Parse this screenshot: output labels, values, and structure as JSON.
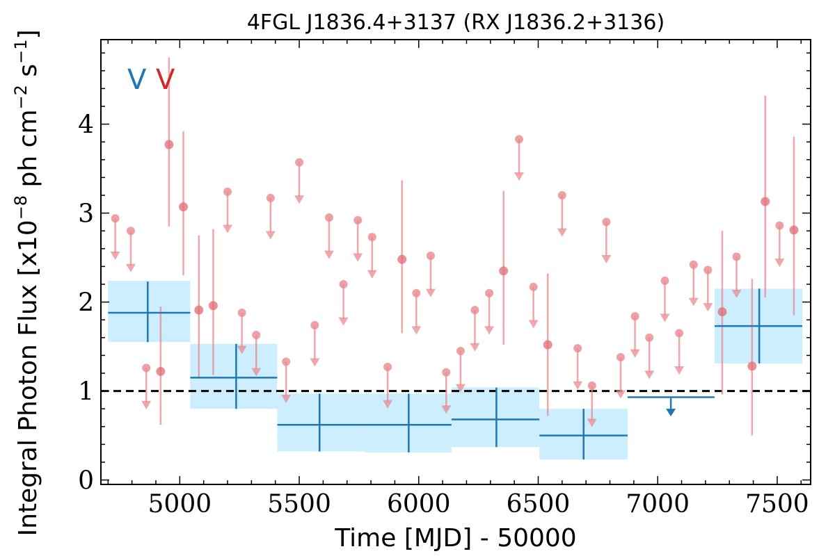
{
  "chart_data": {
    "type": "scatter",
    "title": "4FGL J1836.4+3137 (RX J1836.2+3136)",
    "xlabel": "Time [MJD] - 50000",
    "ylabel": "Integral Photon Flux [x10",
    "ylabel_exp1": "−8",
    "ylabel_mid": " ph cm",
    "ylabel_exp2": "−2",
    "ylabel_mid2": " s",
    "ylabel_exp3": "−1",
    "ylabel_end": "]",
    "xlim": [
      4670,
      7640
    ],
    "ylim": [
      -0.05,
      4.95
    ],
    "xticks": [
      5000,
      5500,
      6000,
      6500,
      7000,
      7500
    ],
    "xtick_labels": [
      "5000",
      "5500",
      "6000",
      "6500",
      "7000",
      "7500"
    ],
    "yticks": [
      0,
      1,
      2,
      3,
      4
    ],
    "ytick_labels": [
      "0",
      "1",
      "2",
      "3",
      "4"
    ],
    "reference_line": 1.0,
    "markers": [
      {
        "label": "V",
        "color": "#1f77b4"
      },
      {
        "label": "V",
        "color": "#d62728"
      }
    ],
    "colors": {
      "long_bins": "#1f77b4",
      "long_band": "#cceeff",
      "short_bins": "#e88a8f",
      "reference": "#000000"
    },
    "series": [
      {
        "kind": "long_bins",
        "points": [
          {
            "x": 4866,
            "x0": 4700,
            "x1": 5044,
            "y": 1.88,
            "ylo": 1.55,
            "yhi": 2.23,
            "band_lo": 1.55,
            "band_hi": 2.24
          },
          {
            "x": 5236,
            "x0": 5044,
            "x1": 5408,
            "y": 1.15,
            "ylo": 0.8,
            "yhi": 1.53,
            "band_lo": 0.8,
            "band_hi": 1.53
          },
          {
            "x": 5585,
            "x0": 5408,
            "x1": 5772,
            "y": 0.62,
            "ylo": 0.32,
            "yhi": 0.97,
            "band_lo": 0.32,
            "band_hi": 0.97
          },
          {
            "x": 5958,
            "x0": 5772,
            "x1": 6137,
            "y": 0.62,
            "ylo": 0.31,
            "yhi": 0.97,
            "band_lo": 0.31,
            "band_hi": 0.97
          },
          {
            "x": 6325,
            "x0": 6137,
            "x1": 6505,
            "y": 0.68,
            "ylo": 0.37,
            "yhi": 1.04,
            "band_lo": 0.37,
            "band_hi": 1.04
          },
          {
            "x": 6690,
            "x0": 6505,
            "x1": 6874,
            "y": 0.5,
            "ylo": 0.23,
            "yhi": 0.8,
            "band_lo": 0.23,
            "band_hi": 0.8
          },
          {
            "x": 7055,
            "x0": 6874,
            "x1": 7238,
            "y": 0.93,
            "upper_limit": true
          },
          {
            "x": 7425,
            "x0": 7238,
            "x1": 7605,
            "y": 1.73,
            "ylo": 1.31,
            "yhi": 2.15,
            "band_lo": 1.31,
            "band_hi": 2.15
          }
        ]
      },
      {
        "kind": "short_bins",
        "points": [
          {
            "x": 4730,
            "y": 2.94,
            "ul": true
          },
          {
            "x": 4795,
            "y": 2.8,
            "ul": true
          },
          {
            "x": 4860,
            "y": 1.26,
            "ul": true
          },
          {
            "x": 4920,
            "y": 1.22,
            "ylo": 0.62,
            "yhi": 1.95
          },
          {
            "x": 4955,
            "y": 3.77,
            "ylo": 2.85,
            "yhi": 4.75
          },
          {
            "x": 5015,
            "y": 3.07,
            "ylo": 2.3,
            "yhi": 3.92
          },
          {
            "x": 5080,
            "y": 1.91,
            "ylo": 1.14,
            "yhi": 2.75
          },
          {
            "x": 5140,
            "y": 1.96,
            "ylo": 1.18,
            "yhi": 2.82
          },
          {
            "x": 5200,
            "y": 3.24,
            "ul": true
          },
          {
            "x": 5260,
            "y": 1.88,
            "ul": true
          },
          {
            "x": 5320,
            "y": 1.63,
            "ul": true
          },
          {
            "x": 5380,
            "y": 3.17,
            "ul": true
          },
          {
            "x": 5445,
            "y": 1.33,
            "ul": true
          },
          {
            "x": 5500,
            "y": 3.57,
            "ul": true
          },
          {
            "x": 5565,
            "y": 1.74,
            "ul": true
          },
          {
            "x": 5625,
            "y": 2.95,
            "ul": true
          },
          {
            "x": 5685,
            "y": 2.2,
            "ul": true
          },
          {
            "x": 5745,
            "y": 2.92,
            "ul": true
          },
          {
            "x": 5805,
            "y": 2.73,
            "ul": true
          },
          {
            "x": 5870,
            "y": 1.27,
            "ul": true
          },
          {
            "x": 5930,
            "y": 2.48,
            "ylo": 1.65,
            "yhi": 3.37
          },
          {
            "x": 5990,
            "y": 2.1,
            "ul": true
          },
          {
            "x": 6050,
            "y": 2.52,
            "ul": true
          },
          {
            "x": 6115,
            "y": 1.21,
            "ul": true
          },
          {
            "x": 6175,
            "y": 1.45,
            "ul": true
          },
          {
            "x": 6235,
            "y": 1.91,
            "ul": true
          },
          {
            "x": 6295,
            "y": 2.1,
            "ul": true
          },
          {
            "x": 6355,
            "y": 2.35,
            "ylo": 1.52,
            "yhi": 3.25
          },
          {
            "x": 6420,
            "y": 3.83,
            "ul": true
          },
          {
            "x": 6480,
            "y": 2.17,
            "ul": true
          },
          {
            "x": 6540,
            "y": 1.52,
            "ylo": 0.72,
            "yhi": 2.32
          },
          {
            "x": 6600,
            "y": 3.2,
            "ul": true
          },
          {
            "x": 6665,
            "y": 1.48,
            "ul": true
          },
          {
            "x": 6725,
            "y": 1.06,
            "ul": true
          },
          {
            "x": 6785,
            "y": 2.9,
            "ul": true
          },
          {
            "x": 6845,
            "y": 1.38,
            "ul": true
          },
          {
            "x": 6905,
            "y": 1.84,
            "ul": true
          },
          {
            "x": 6965,
            "y": 1.6,
            "ul": true
          },
          {
            "x": 7030,
            "y": 2.24,
            "ul": true
          },
          {
            "x": 7090,
            "y": 1.65,
            "ul": true
          },
          {
            "x": 7150,
            "y": 2.42,
            "ul": true
          },
          {
            "x": 7210,
            "y": 2.36,
            "ul": true
          },
          {
            "x": 7270,
            "y": 1.89,
            "ylo": 0.96,
            "yhi": 2.8
          },
          {
            "x": 7330,
            "y": 2.51,
            "ul": true
          },
          {
            "x": 7395,
            "y": 1.28,
            "ylo": 0.5,
            "yhi": 2.26
          },
          {
            "x": 7450,
            "y": 3.13,
            "ylo": 2.05,
            "yhi": 4.32
          },
          {
            "x": 7510,
            "y": 2.86,
            "ul": true
          },
          {
            "x": 7570,
            "y": 2.81,
            "ylo": 1.85,
            "yhi": 3.86
          }
        ]
      }
    ]
  }
}
